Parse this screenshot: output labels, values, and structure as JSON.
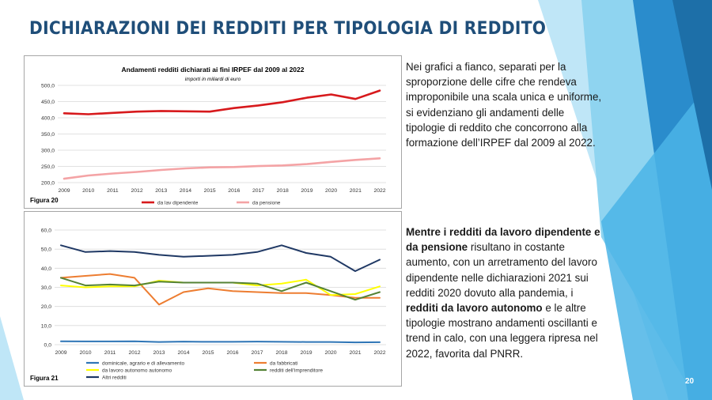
{
  "page": {
    "title": "DICHIARAZIONI DEI REDDITI PER TIPOLOGIA DI REDDITO",
    "page_number": "20",
    "colors": {
      "title": "#1f4e79",
      "deco_light": "#8fd4f0",
      "deco_mid": "#4bb4e6",
      "deco_dark": "#1d6fa8"
    }
  },
  "text_blocks": {
    "paragraph1": "Nei grafici a fianco, separati per la sproporzione delle cifre che rendeva improponibile una scala unica e uniforme, si evidenziano gli andamenti delle tipologie di reddito che concorrono alla formazione dell’IRPEF dal 2009 al 2022.",
    "paragraph2_bold1": "Mentre i redditi da lavoro dipendente e da pensione",
    "paragraph2_text1": " risultano in costante aumento, con un arretramento del lavoro dipendente nelle dichiarazioni 2021 sui redditi 2020 dovuto alla pandemia, i ",
    "paragraph2_bold2": "redditi da lavoro autonomo",
    "paragraph2_text2": " e le altre tipologie mostrano andamenti oscillanti e trend in calo, con una leggera ripresa nel 2022, favorita dal PNRR."
  },
  "chart_data": [
    {
      "type": "line",
      "figure_label": "Figura 20",
      "title": "Andamenti redditi dichiarati ai fini IRPEF dal 2009 al 2022",
      "subtitle": "importi in miliardi di euro",
      "x": [
        "2009",
        "2010",
        "2011",
        "2012",
        "2013",
        "2014",
        "2015",
        "2016",
        "2017",
        "2018",
        "2019",
        "2020",
        "2021",
        "2022"
      ],
      "ylim": [
        200,
        500
      ],
      "yticks": [
        "200,0",
        "250,0",
        "300,0",
        "350,0",
        "400,0",
        "450,0",
        "500,0"
      ],
      "grid": true,
      "legend": "bottom",
      "series": [
        {
          "name": "da lav dipendente",
          "color": "#d7191c",
          "values": [
            414,
            411,
            415,
            419,
            421,
            420,
            419,
            430,
            438,
            448,
            462,
            472,
            458,
            484
          ]
        },
        {
          "name": "da pensione",
          "color": "#f4a3a5",
          "values": [
            212,
            222,
            228,
            233,
            239,
            244,
            247,
            248,
            251,
            253,
            257,
            264,
            270,
            275
          ]
        }
      ]
    },
    {
      "type": "line",
      "figure_label": "Figura 21",
      "x": [
        "2009",
        "2010",
        "2011",
        "2012",
        "2013",
        "2014",
        "2015",
        "2016",
        "2017",
        "2018",
        "2019",
        "2020",
        "2021",
        "2022"
      ],
      "ylim": [
        0,
        60
      ],
      "yticks": [
        "0,0",
        "10,0",
        "20,0",
        "30,0",
        "40,0",
        "50,0",
        "60,0"
      ],
      "grid": true,
      "legend": "bottom",
      "series": [
        {
          "name": "dominicale, agrario e di allevamento",
          "color": "#2e75b6",
          "values": [
            1.8,
            1.7,
            1.7,
            1.8,
            1.4,
            1.6,
            1.5,
            1.5,
            1.6,
            1.5,
            1.4,
            1.4,
            1.2,
            1.3
          ]
        },
        {
          "name": "da fabbricati",
          "color": "#ed7d31",
          "values": [
            35.0,
            36.0,
            37.0,
            35.0,
            21.0,
            27.5,
            29.5,
            28.0,
            27.5,
            27.0,
            27.0,
            26.0,
            24.5,
            24.5
          ]
        },
        {
          "name": "da lavoro autonomo autonomo",
          "color": "#ffff00",
          "values": [
            31.0,
            30.0,
            30.5,
            30.5,
            33.5,
            32.5,
            32.5,
            32.5,
            31.0,
            32.0,
            34.0,
            26.0,
            26.5,
            30.5
          ]
        },
        {
          "name": "redditi dell'imprenditore",
          "color": "#548235",
          "values": [
            35.0,
            31.0,
            31.5,
            31.0,
            33.0,
            32.5,
            32.5,
            32.5,
            32.0,
            28.0,
            32.5,
            28.0,
            23.5,
            27.5
          ]
        },
        {
          "name": "Altri redditi",
          "color": "#1f3864",
          "values": [
            52.0,
            48.5,
            49.0,
            48.5,
            47.0,
            46.0,
            46.5,
            47.0,
            48.5,
            52.0,
            48.0,
            46.0,
            38.5,
            44.5
          ]
        }
      ]
    }
  ]
}
